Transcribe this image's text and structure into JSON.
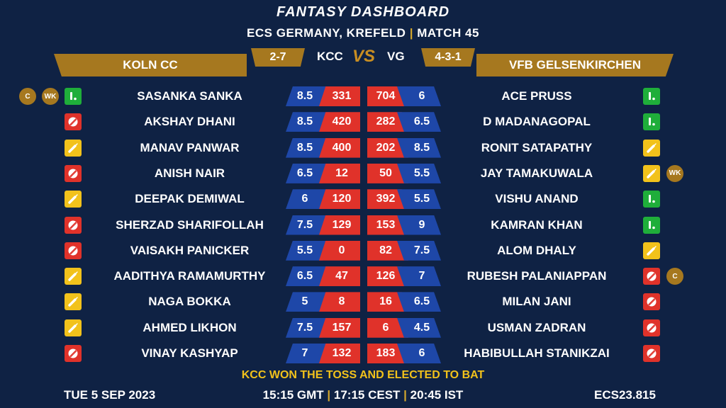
{
  "header": {
    "title": "FANTASY DASHBOARD",
    "subtitle_venue": "ECS GERMANY, KREFELD",
    "subtitle_sep": "|",
    "subtitle_match": "MATCH 45"
  },
  "team_left": {
    "name": "KOLN CC",
    "abbr": "KCC",
    "form": "2-7"
  },
  "team_right": {
    "name": "VFB GELSENKIRCHEN",
    "abbr": "VG",
    "form": "4-3-1"
  },
  "vs_label": "VS",
  "colors": {
    "background": "#0f2244",
    "gold": "#a6781f",
    "credit_blue": "#1e47a8",
    "points_red": "#e0322a",
    "bowler_red": "#e0322a",
    "batter_yellow": "#f2c21b",
    "keeper_green": "#1fae3a",
    "toss_yellow": "#f2c21b"
  },
  "left_players": [
    {
      "name": "SASANKA SANKA",
      "credit": "8.5",
      "points": "331",
      "role": "keeper-icon",
      "badges": [
        "C",
        "WK"
      ]
    },
    {
      "name": "AKSHAY DHANI",
      "credit": "8.5",
      "points": "420",
      "role": "ball-icon",
      "badges": []
    },
    {
      "name": "MANAV PANWAR",
      "credit": "8.5",
      "points": "400",
      "role": "bat-icon",
      "badges": []
    },
    {
      "name": "ANISH NAIR",
      "credit": "6.5",
      "points": "12",
      "role": "ball-icon",
      "badges": []
    },
    {
      "name": "DEEPAK DEMIWAL",
      "credit": "6",
      "points": "120",
      "role": "bat-icon",
      "badges": []
    },
    {
      "name": "SHERZAD SHARIFOLLAH",
      "credit": "7.5",
      "points": "129",
      "role": "ball-icon",
      "badges": []
    },
    {
      "name": "VAISAKH PANICKER",
      "credit": "5.5",
      "points": "0",
      "role": "ball-icon",
      "badges": []
    },
    {
      "name": "AADITHYA RAMAMURTHY",
      "credit": "6.5",
      "points": "47",
      "role": "bat-icon",
      "badges": []
    },
    {
      "name": "NAGA BOKKA",
      "credit": "5",
      "points": "8",
      "role": "bat-icon",
      "badges": []
    },
    {
      "name": "AHMED LIKHON",
      "credit": "7.5",
      "points": "157",
      "role": "bat-icon",
      "badges": []
    },
    {
      "name": "VINAY KASHYAP",
      "credit": "7",
      "points": "132",
      "role": "ball-icon",
      "badges": []
    }
  ],
  "right_players": [
    {
      "name": "ACE PRUSS",
      "credit": "6",
      "points": "704",
      "role": "keeper-icon",
      "badges": []
    },
    {
      "name": "D MADANAGOPAL",
      "credit": "6.5",
      "points": "282",
      "role": "keeper-icon",
      "badges": []
    },
    {
      "name": "RONIT SATAPATHY",
      "credit": "8.5",
      "points": "202",
      "role": "bat-icon",
      "badges": []
    },
    {
      "name": "JAY TAMAKUWALA",
      "credit": "5.5",
      "points": "50",
      "role": "bat-icon",
      "badges": [
        "WK"
      ]
    },
    {
      "name": "VISHU ANAND",
      "credit": "5.5",
      "points": "392",
      "role": "keeper-icon",
      "badges": []
    },
    {
      "name": "KAMRAN KHAN",
      "credit": "9",
      "points": "153",
      "role": "keeper-icon",
      "badges": []
    },
    {
      "name": "ALOM DHALY",
      "credit": "7.5",
      "points": "82",
      "role": "bat-icon",
      "badges": []
    },
    {
      "name": "RUBESH PALANIAPPAN",
      "credit": "7",
      "points": "126",
      "role": "ball-icon",
      "badges": [
        "C"
      ]
    },
    {
      "name": "MILAN JANI",
      "credit": "6.5",
      "points": "16",
      "role": "ball-icon",
      "badges": []
    },
    {
      "name": "USMAN ZADRAN",
      "credit": "4.5",
      "points": "6",
      "role": "ball-icon",
      "badges": []
    },
    {
      "name": "HABIBULLAH STANIKZAI",
      "credit": "6",
      "points": "183",
      "role": "ball-icon",
      "badges": []
    }
  ],
  "toss": "KCC WON THE TOSS AND ELECTED TO BAT",
  "footer": {
    "date": "TUE 5 SEP 2023",
    "time_gmt": "15:15 GMT",
    "time_cest": "17:15 CEST",
    "time_ist": "20:45 IST",
    "sep": "|",
    "code": "ECS23.815"
  }
}
